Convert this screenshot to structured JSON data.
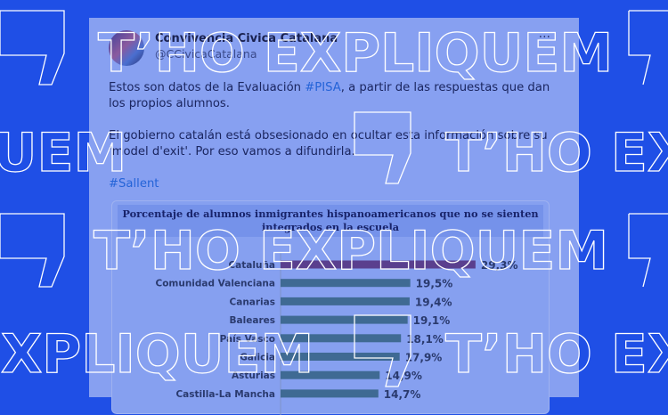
{
  "tweet": {
    "author_name": "Convivencia Civica Catalana",
    "author_handle": "@CCivicaCatalana",
    "more_icon": "more-horizontal-icon",
    "para1_a": "Estos son datos de la Evaluación ",
    "para1_tag": "#PISA",
    "para1_b": ", a partir de las respuestas que dan los propios alumnos.",
    "para2": "El gobierno catalán está obsesionado en ocultar esta información sobre su 'model d'exit'.  Por eso vamos a difundirla.",
    "hashtag": "#Sallent"
  },
  "watermark": "T'HO EXPLIQUEM",
  "chart_data": {
    "type": "bar",
    "orientation": "horizontal",
    "title": "Porcentaje de alumnos inmigrantes hispanoamericanos que no se sienten integrados en la escuela",
    "categories": [
      "Cataluña",
      "Comunidad Valenciana",
      "Canarias",
      "Baleares",
      "País Vasco",
      "Galicia",
      "Asturias",
      "Castilla-La Mancha"
    ],
    "values": [
      29.3,
      19.5,
      19.4,
      19.1,
      18.1,
      17.9,
      14.9,
      14.7
    ],
    "labels": [
      "29,3%",
      "19,5%",
      "19,4%",
      "19,1%",
      "18,1%",
      "17,9%",
      "14,9%",
      "14,7%"
    ],
    "colors": {
      "highlight": "#5a3f8e",
      "default": "#3f6a93"
    }
  }
}
